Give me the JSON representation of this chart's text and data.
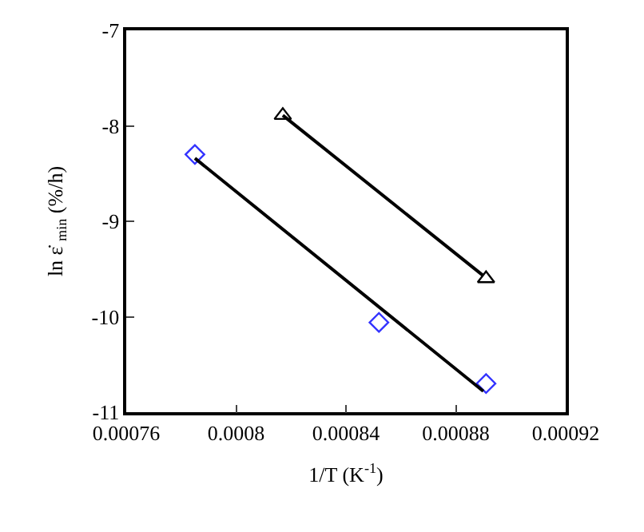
{
  "chart_data": {
    "type": "scatter",
    "xlabel": "1/T (K$^{-1}$)",
    "ylabel": "ln ε̇ $_{min}$ (%/h)",
    "xlim": [
      0.00076,
      0.00092
    ],
    "xticks": [
      0.00076,
      0.0008,
      0.00084,
      0.00088,
      0.00092
    ],
    "ylim": [
      -11,
      -7
    ],
    "yticks": [
      -11,
      -10,
      -9,
      -8,
      -7
    ],
    "grid": false,
    "legend": false,
    "series": [
      {
        "marker": "diamond",
        "color": "#3333ff",
        "x": [
          0.000785,
          0.000852,
          0.000891
        ],
        "values": [
          -8.3,
          -10.06,
          -10.7
        ]
      },
      {
        "marker": "triangle",
        "color": "#000000",
        "x": [
          0.000817,
          0.000891
        ],
        "values": [
          -7.89,
          -9.6
        ]
      },
      {
        "type": "line",
        "marker": "none",
        "color": "#000000",
        "x": [
          0.000785,
          0.00089
        ],
        "values": [
          -8.34,
          -10.78
        ]
      },
      {
        "type": "line",
        "marker": "none",
        "color": "#000000",
        "x": [
          0.000817,
          0.00089
        ],
        "values": [
          -7.89,
          -9.57
        ]
      }
    ]
  }
}
